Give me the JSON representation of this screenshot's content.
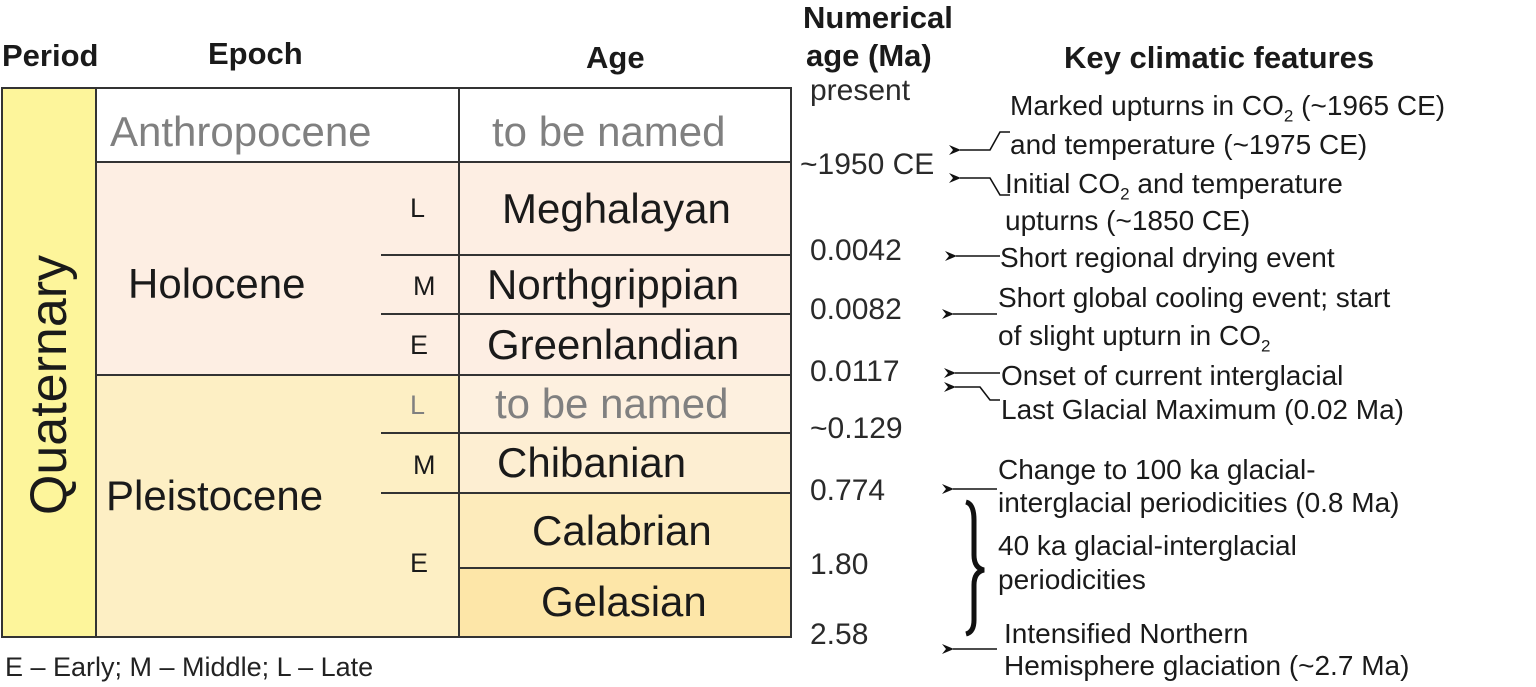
{
  "headers": {
    "period": "Period",
    "epoch": "Epoch",
    "age": "Age",
    "numerical_age": [
      "Numerical",
      "age (Ma)"
    ],
    "features": "Key climatic features"
  },
  "period": "Quaternary",
  "epochs": {
    "anthropocene": "Anthropocene",
    "holocene": "Holocene",
    "pleistocene": "Pleistocene"
  },
  "subepochs": {
    "hol_l": "L",
    "hol_m": "M",
    "hol_e": "E",
    "ple_l": "L",
    "ple_m": "M",
    "ple_e": "E"
  },
  "ages": {
    "anthropocene": "to be named",
    "meghalayan": "Meghalayan",
    "northgrippian": "Northgrippian",
    "greenlandian": "Greenlandian",
    "late_pleistocene": "to be named",
    "chibanian": "Chibanian",
    "calabrian": "Calabrian",
    "gelasian": "Gelasian"
  },
  "numerical_ages": [
    "present",
    "~1950 CE",
    "0.0042",
    "0.0082",
    "0.0117",
    "~0.129",
    "0.774",
    "1.80",
    "2.58"
  ],
  "features": {
    "f1": [
      "Marked upturns in CO",
      "2",
      " (~1965 CE)"
    ],
    "f1b": "and temperature (~1975 CE)",
    "f2": [
      "Initial CO",
      "2",
      " and temperature"
    ],
    "f2b": "upturns (~1850 CE)",
    "f3": "Short regional drying event",
    "f4": "Short global cooling event; start",
    "f4b": [
      "of slight upturn in CO",
      "2"
    ],
    "f5": "Onset of current interglacial",
    "f6": "Last Glacial Maximum (0.02 Ma)",
    "f7": "Change to 100 ka glacial-",
    "f7b": "interglacial periodicities (0.8 Ma)",
    "f8": "40 ka glacial-interglacial",
    "f8b": "periodicities",
    "f9": "Intensified Northern",
    "f9b": "Hemisphere glaciation (~2.7 Ma)"
  },
  "legend": "E – Early; M – Middle; L – Late",
  "colors": {
    "period": "#fdf59b",
    "holocene": "#fdeee3",
    "pleistocene": "#fdefc4",
    "border": "#333333",
    "grey_text": "#808080"
  }
}
